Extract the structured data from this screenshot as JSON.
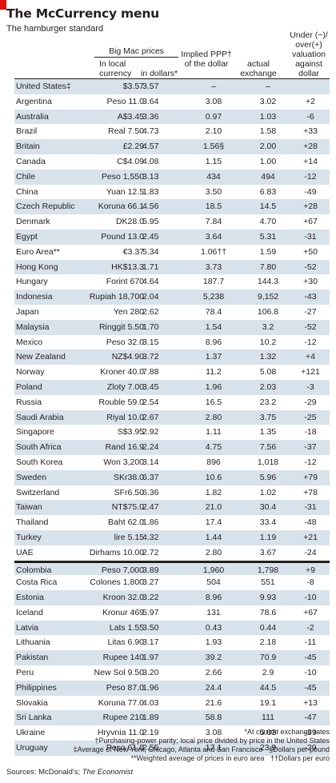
{
  "title": "The McCurrency menu",
  "subtitle": "The hamburger standard",
  "headers": {
    "group": "Big Mac prices",
    "local": "In local currency",
    "dollars": "in dollars*",
    "ppp": "Implied PPP† of the dollar",
    "rate": "actual exchange rate",
    "valuation": "Under (−)/ over(+) valuation against dollar"
  },
  "rows": [
    {
      "country": "United States‡",
      "local": "$3.57",
      "dollars": "3.57",
      "ppp": "–",
      "rate": "–",
      "val": ""
    },
    {
      "country": "Argentina",
      "local": "Peso 11.0",
      "dollars": "3.64",
      "ppp": "3.08",
      "rate": "3.02",
      "val": "+2"
    },
    {
      "country": "Australia",
      "local": "A$3.45",
      "dollars": "3.36",
      "ppp": "0.97",
      "rate": "1.03",
      "val": "-6"
    },
    {
      "country": "Brazil",
      "local": "Real 7.50",
      "dollars": "4.73",
      "ppp": "2.10",
      "rate": "1.58",
      "val": "+33"
    },
    {
      "country": "Britain",
      "local": "£2.29",
      "dollars": "4.57",
      "ppp": "1.56§",
      "rate": "2.00",
      "val": "+28"
    },
    {
      "country": "Canada",
      "local": "C$4.09",
      "dollars": "4.08",
      "ppp": "1.15",
      "rate": "1.00",
      "val": "+14"
    },
    {
      "country": "Chile",
      "local": "Peso 1,550",
      "dollars": "3.13",
      "ppp": "434",
      "rate": "494",
      "val": "-12"
    },
    {
      "country": "China",
      "local": "Yuan 12.5",
      "dollars": "1.83",
      "ppp": "3.50",
      "rate": "6.83",
      "val": "-49"
    },
    {
      "country": "Czech Republic",
      "local": "Koruna 66.1",
      "dollars": "4.56",
      "ppp": "18.5",
      "rate": "14.5",
      "val": "+28"
    },
    {
      "country": "Denmark",
      "local": "DK28.0",
      "dollars": "5.95",
      "ppp": "7.84",
      "rate": "4.70",
      "val": "+67"
    },
    {
      "country": "Egypt",
      "local": "Pound 13.0",
      "dollars": "2.45",
      "ppp": "3.64",
      "rate": "5.31",
      "val": "-31"
    },
    {
      "country": "Euro Area**",
      "local": "€3.37",
      "dollars": "5.34",
      "ppp": "1.06††",
      "rate": "1.59",
      "val": "+50"
    },
    {
      "country": "Hong Kong",
      "local": "HK$13.3",
      "dollars": "1.71",
      "ppp": "3.73",
      "rate": "7.80",
      "val": "-52"
    },
    {
      "country": "Hungary",
      "local": "Forint 670",
      "dollars": "4.64",
      "ppp": "187.7",
      "rate": "144.3",
      "val": "+30"
    },
    {
      "country": "Indonesia",
      "local": "Rupiah 18,700",
      "dollars": "2.04",
      "ppp": "5,238",
      "rate": "9,152",
      "val": "-43"
    },
    {
      "country": "Japan",
      "local": "Yen 280",
      "dollars": "2.62",
      "ppp": "78.4",
      "rate": "106.8",
      "val": "-27"
    },
    {
      "country": "Malaysia",
      "local": "Ringgit 5.50",
      "dollars": "1.70",
      "ppp": "1.54",
      "rate": "3.2",
      "val": "-52"
    },
    {
      "country": "Mexico",
      "local": "Peso 32.0",
      "dollars": "3.15",
      "ppp": "8.96",
      "rate": "10.2",
      "val": "-12"
    },
    {
      "country": "New Zealand",
      "local": "NZ$4.90",
      "dollars": "3.72",
      "ppp": "1.37",
      "rate": "1.32",
      "val": "+4"
    },
    {
      "country": "Norway",
      "local": "Kroner 40.0",
      "dollars": "7.88",
      "ppp": "11.2",
      "rate": "5.08",
      "val": "+121"
    },
    {
      "country": "Poland",
      "local": "Zloty 7.00",
      "dollars": "3.45",
      "ppp": "1.96",
      "rate": "2.03",
      "val": "-3"
    },
    {
      "country": "Russia",
      "local": "Rouble 59.0",
      "dollars": "2.54",
      "ppp": "16.5",
      "rate": "23.2",
      "val": "-29"
    },
    {
      "country": "Saudi Arabia",
      "local": "Riyal 10.0",
      "dollars": "2.67",
      "ppp": "2.80",
      "rate": "3.75",
      "val": "-25"
    },
    {
      "country": "Singapore",
      "local": "S$3.95",
      "dollars": "2.92",
      "ppp": "1.11",
      "rate": "1.35",
      "val": "-18"
    },
    {
      "country": "South Africa",
      "local": "Rand 16.9",
      "dollars": "2.24",
      "ppp": "4.75",
      "rate": "7.56",
      "val": "-37"
    },
    {
      "country": "South Korea",
      "local": "Won 3,200",
      "dollars": "3.14",
      "ppp": "896",
      "rate": "1,018",
      "val": "-12"
    },
    {
      "country": "Sweden",
      "local": "SKr38.0",
      "dollars": "6.37",
      "ppp": "10.6",
      "rate": "5.96",
      "val": "+79"
    },
    {
      "country": "Switzerland",
      "local": "SFr6.50",
      "dollars": "6.36",
      "ppp": "1.82",
      "rate": "1.02",
      "val": "+78"
    },
    {
      "country": "Taiwan",
      "local": "NT$75.0",
      "dollars": "2.47",
      "ppp": "21.0",
      "rate": "30.4",
      "val": "-31"
    },
    {
      "country": "Thailand",
      "local": "Baht 62.0",
      "dollars": "1.86",
      "ppp": "17.4",
      "rate": "33.4",
      "val": "-48"
    },
    {
      "country": "Turkey",
      "local": "lire 5.15",
      "dollars": "4.32",
      "ppp": "1.44",
      "rate": "1.19",
      "val": "+21"
    },
    {
      "country": "UAE",
      "local": "Dirhams 10.00",
      "dollars": "2.72",
      "ppp": "2.80",
      "rate": "3.67",
      "val": "-24"
    },
    {
      "country": "Colombia",
      "local": "Peso 7,000",
      "dollars": "3.89",
      "ppp": "1,960",
      "rate": "1,798",
      "val": "+9"
    },
    {
      "country": "Costa Rica",
      "local": "Colones 1,800",
      "dollars": "3.27",
      "ppp": "504",
      "rate": "551",
      "val": "-8"
    },
    {
      "country": "Estonia",
      "local": "Kroon 32.0",
      "dollars": "3.22",
      "ppp": "8.96",
      "rate": "9.93",
      "val": "-10"
    },
    {
      "country": "Iceland",
      "local": "Kronur 469",
      "dollars": "5.97",
      "ppp": "131",
      "rate": "78.6",
      "val": "+67"
    },
    {
      "country": "Latvia",
      "local": "Lats 1.55",
      "dollars": "3.50",
      "ppp": "0.43",
      "rate": "0.44",
      "val": "-2"
    },
    {
      "country": "Lithuania",
      "local": "Litas 6.90",
      "dollars": "3.17",
      "ppp": "1.93",
      "rate": "2.18",
      "val": "-11"
    },
    {
      "country": "Pakistan",
      "local": "Rupee 140",
      "dollars": "1.97",
      "ppp": "39.2",
      "rate": "70.9",
      "val": "-45"
    },
    {
      "country": "Peru",
      "local": "New Sol 9.50",
      "dollars": "3.20",
      "ppp": "2.66",
      "rate": "2.9",
      "val": "-10"
    },
    {
      "country": "Philippines",
      "local": "Peso 87.0",
      "dollars": "1.96",
      "ppp": "24.4",
      "rate": "44.5",
      "val": "-45"
    },
    {
      "country": "Slovakia",
      "local": "Koruna 77.0",
      "dollars": "4.03",
      "ppp": "21.6",
      "rate": "19.1",
      "val": "+13"
    },
    {
      "country": "Sri Lanka",
      "local": "Rupee 210",
      "dollars": "1.89",
      "ppp": "58.8",
      "rate": "111",
      "val": "-47"
    },
    {
      "country": "Ukraine",
      "local": "Hryvnia 11.0",
      "dollars": "2.19",
      "ppp": "3.08",
      "rate": "5.03",
      "val": "-39"
    },
    {
      "country": "Uruguay",
      "local": "Peso  61.0",
      "dollars": "2.55",
      "ppp": "17.1",
      "rate": "23.9",
      "val": "-29"
    }
  ],
  "notes": {
    "n1": "*At current exchange rates",
    "n2": "†Purchasing-power parity; local price divided by price in the United States",
    "n3a": "‡Average of New York, Chicago, Atlanta and San Francisco",
    "n3b": "§Dollars per pound",
    "n4a": "**Weighted average of prices in euro area",
    "n4b": "††Dollars per euro"
  },
  "sources_label": "Sources: McDonald's;",
  "sources_pub": "The Economist",
  "colors": {
    "band": "#d8e2ea",
    "accent": "#e3120b",
    "text": "#231f20"
  }
}
